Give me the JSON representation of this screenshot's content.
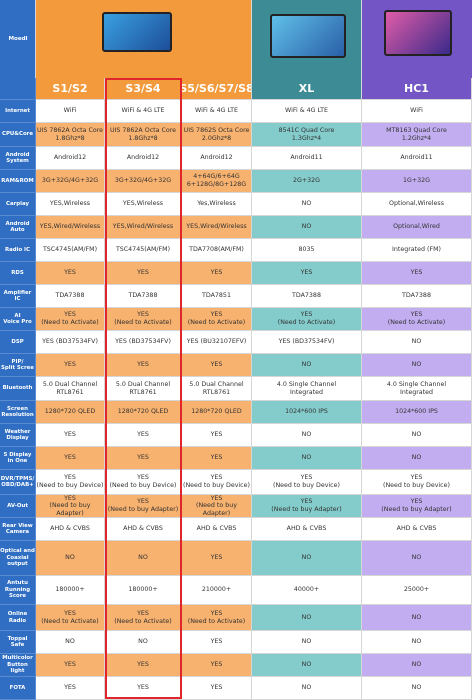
{
  "header": {
    "label": "Moedl"
  },
  "models": [
    "S1/S2",
    "S3/S4",
    "S5/S6/S7/S8",
    "XL",
    "HC1"
  ],
  "rows": [
    {
      "label": "Internet",
      "cells": [
        "WiFi",
        "WiFi & 4G LTE",
        "WiFi & 4G LTE",
        "WiFi & 4G LTE",
        "WiFi"
      ]
    },
    {
      "label": "CPU&Core",
      "cells": [
        "UIS 7862A Octa Core\n1.8Ghz*8",
        "UIS 7862A Octa Core\n1.8Ghz*8",
        "UIS 7862S Octa Core\n2.0Ghz*8",
        "8541C Quad Core\n1.3Ghz*4",
        "MT8163 Quad Core\n1.2Ghz*4"
      ]
    },
    {
      "label": "Android\nSystem",
      "cells": [
        "Android12",
        "Android12",
        "Android12",
        "Android11",
        "Android11"
      ]
    },
    {
      "label": "RAM&ROM",
      "cells": [
        "3G+32G/4G+32G",
        "3G+32G/4G+32G",
        "4+64G/6+64G\n6+128G/8G+128G",
        "2G+32G",
        "1G+32G"
      ]
    },
    {
      "label": "Carplay",
      "cells": [
        "YES,Wireless",
        "YES,Wireless",
        "Yes,Wireless",
        "NO",
        "Optional,Wireless"
      ]
    },
    {
      "label": "Android\nAuto",
      "cells": [
        "YES,Wired/Wireless",
        "YES,Wired/Wireless",
        "YES,Wired/Wireless",
        "NO",
        "Optional,Wired"
      ]
    },
    {
      "label": "Radio IC",
      "cells": [
        "TSC4745(AM/FM)",
        "TSC4745(AM/FM)",
        "TDA7708(AM/FM)",
        "8035",
        "Integrated (FM)"
      ]
    },
    {
      "label": "RDS",
      "cells": [
        "YES",
        "YES",
        "YES",
        "YES",
        "YES"
      ]
    },
    {
      "label": "Amplifier IC",
      "cells": [
        "TDA7388",
        "TDA7388",
        "TDA7851",
        "TDA7388",
        "TDA7388"
      ]
    },
    {
      "label": "AI\nVoice Pro",
      "cells": [
        "YES\n(Need to Activate)",
        "YES\n(Need to Activate)",
        "YES\n(Need to Activate)",
        "YES\n(Need to Activate)",
        "YES\n(Need to Activate)"
      ]
    },
    {
      "label": "DSP",
      "cells": [
        "YES (BD37534FV)",
        "YES (BD37534FV)",
        "YES (BU32107EFV)",
        "YES (BD37534FV)",
        "NO"
      ]
    },
    {
      "label": "PIP/\nSplit Scree",
      "cells": [
        "YES",
        "YES",
        "YES",
        "NO",
        "NO"
      ]
    },
    {
      "label": "Bluetooth",
      "cells": [
        "5.0 Dual Channel\nRTL8761",
        "5.0 Dual Channel\nRTL8761",
        "5.0 Dual Channel\nRTL8761",
        "4.0 Single Channel\nIntegrated",
        "4.0 Single Channel\nIntegrated"
      ]
    },
    {
      "label": "Screen\nResolution",
      "cells": [
        "1280*720 QLED",
        "1280*720 QLED",
        "1280*720 QLED",
        "1024*600 IPS",
        "1024*600 IPS"
      ]
    },
    {
      "label": "Weather\nDisplay",
      "cells": [
        "YES",
        "YES",
        "YES",
        "NO",
        "NO"
      ]
    },
    {
      "label": "5 Display\nin One",
      "cells": [
        "YES",
        "YES",
        "YES",
        "NO",
        "NO"
      ]
    },
    {
      "label": "DVR/TPMS/\nOBD/DAB+",
      "cells": [
        "YES\n(Need to buy Device)",
        "YES\n(Need to buy Device)",
        "YES\n(Need to buy Device)",
        "YES\n(Need to buy Device)",
        "YES\n(Need to buy Device)"
      ]
    },
    {
      "label": "AV-Out",
      "cells": [
        "YES\n(Need to buy Adapter)",
        "YES\n(Need to buy Adapter)",
        "YES\n(Need to buy Adapter)",
        "YES\n(Need to buy Adapter)",
        "YES\n(Need to buy Adapter)"
      ]
    },
    {
      "label": "Rear View\nCamera",
      "cells": [
        "AHD & CVBS",
        "AHD & CVBS",
        "AHD & CVBS",
        "AHD & CVBS",
        "AHD & CVBS"
      ]
    },
    {
      "label": "Optical and\nCoaxial\noutput",
      "cells": [
        "NO",
        "NO",
        "YES",
        "NO",
        "NO"
      ]
    },
    {
      "label": "Antutu\nRunning\nScore",
      "cells": [
        "180000+",
        "180000+",
        "210000+",
        "40000+",
        "25000+"
      ]
    },
    {
      "label": "Online\nRadio",
      "cells": [
        "YES\n(Need to Activate)",
        "YES\n(Need to Activate)",
        "YES\n(Need to Activate)",
        "NO",
        "NO"
      ]
    },
    {
      "label": "Toppal\nSafe",
      "cells": [
        "NO",
        "NO",
        "YES",
        "NO",
        "NO"
      ]
    },
    {
      "label": "Multicolor\nButton light",
      "cells": [
        "YES",
        "YES",
        "YES",
        "NO",
        "NO"
      ]
    },
    {
      "label": "FOTA",
      "cells": [
        "YES",
        "YES",
        "YES",
        "NO",
        "NO"
      ]
    }
  ]
}
